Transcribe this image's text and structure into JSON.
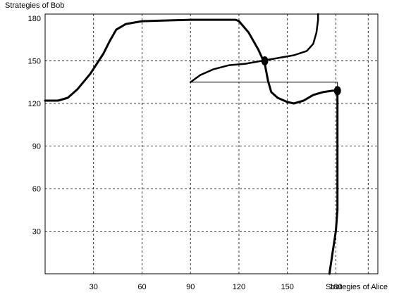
{
  "chart_data": {
    "type": "line",
    "title": "",
    "xlabel": "Strategies of Alice",
    "ylabel": "Strategies of Bob",
    "xlim": [
      0,
      206
    ],
    "ylim": [
      0,
      183
    ],
    "x_ticks": [
      30,
      60,
      90,
      120,
      150,
      180
    ],
    "x_tick_labels": [
      "30",
      "60",
      "90",
      "120",
      "150",
      "180"
    ],
    "x_grid": [
      30,
      60,
      90,
      120,
      150,
      180,
      200
    ],
    "y_ticks": [
      30,
      60,
      90,
      120,
      150,
      180
    ],
    "y_tick_labels": [
      "30",
      "60",
      "90",
      "120",
      "150",
      "180"
    ],
    "y_grid": [
      30,
      60,
      90,
      120,
      150
    ],
    "grid": true,
    "grid_style": "dashed",
    "series": [
      {
        "points": [
          [
            0,
            122
          ],
          [
            8,
            122
          ],
          [
            14,
            124
          ],
          [
            20,
            130
          ],
          [
            28,
            141
          ],
          [
            36,
            155
          ],
          [
            40,
            164
          ],
          [
            44,
            172
          ],
          [
            50,
            176
          ],
          [
            60,
            178
          ],
          [
            90,
            179
          ],
          [
            112,
            179
          ],
          [
            118,
            179
          ],
          [
            120,
            178
          ],
          [
            126,
            170
          ],
          [
            132,
            158
          ],
          [
            136,
            148
          ],
          [
            138,
            136
          ],
          [
            140,
            128
          ],
          [
            144,
            124
          ],
          [
            150,
            121
          ],
          [
            154,
            120
          ],
          [
            160,
            122
          ],
          [
            166,
            126
          ],
          [
            172,
            128
          ],
          [
            178,
            129
          ],
          [
            180,
            129
          ]
        ],
        "stroke_width": 3
      },
      {
        "points": [
          [
            176,
            0
          ],
          [
            178,
            15
          ],
          [
            180,
            30
          ],
          [
            181,
            45
          ],
          [
            181,
            60
          ],
          [
            181,
            90
          ],
          [
            181,
            120
          ],
          [
            181,
            129
          ]
        ],
        "stroke_width": 3
      },
      {
        "points": [
          [
            90,
            135
          ],
          [
            96,
            140
          ],
          [
            104,
            144
          ],
          [
            114,
            147
          ],
          [
            124,
            148
          ],
          [
            134,
            150
          ],
          [
            144,
            152
          ],
          [
            154,
            154
          ],
          [
            162,
            157
          ],
          [
            166,
            162
          ],
          [
            168,
            170
          ],
          [
            169,
            179
          ],
          [
            169,
            183
          ]
        ],
        "stroke_width": 2.5
      },
      {
        "points": [
          [
            90,
            135
          ],
          [
            181,
            135
          ],
          [
            181,
            129
          ]
        ],
        "stroke_width": 1
      }
    ],
    "markers": [
      {
        "x": 136,
        "y": 150
      },
      {
        "x": 181,
        "y": 129
      }
    ]
  }
}
